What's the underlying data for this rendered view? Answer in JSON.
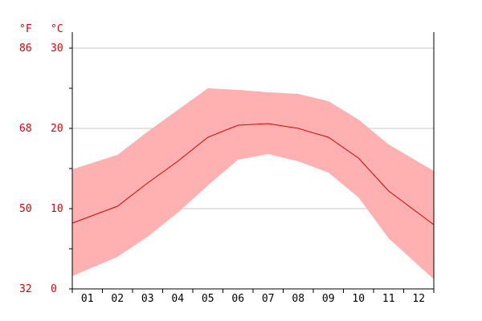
{
  "chart_data": {
    "type": "area",
    "units": {
      "fahrenheit": "°F",
      "celsius": "°C"
    },
    "categories": [
      "01",
      "02",
      "03",
      "04",
      "05",
      "06",
      "07",
      "08",
      "09",
      "10",
      "11",
      "12"
    ],
    "ylim_c": [
      0,
      30
    ],
    "yticks_c": [
      "30",
      "20",
      "10",
      "0"
    ],
    "yticks_f": [
      "86",
      "68",
      "50",
      "32"
    ],
    "grid": true,
    "series": [
      {
        "values": [
          15.5,
          16.7,
          19.6,
          22.3,
          25.0,
          24.8,
          24.5,
          24.3,
          23.4,
          21.1,
          18.0,
          15.8
        ]
      },
      {
        "values": [
          8.9,
          10.3,
          13.2,
          15.9,
          18.9,
          20.4,
          20.6,
          20.0,
          18.9,
          16.3,
          12.2,
          9.4
        ]
      },
      {
        "values": [
          2.4,
          4.0,
          6.5,
          9.5,
          12.9,
          16.1,
          16.8,
          15.9,
          14.5,
          11.4,
          6.3,
          2.9
        ]
      }
    ],
    "colors": {
      "band": "#ffb1b1",
      "line": "#e00000",
      "axis": "#000000",
      "grid": "#c8c8c8"
    }
  }
}
